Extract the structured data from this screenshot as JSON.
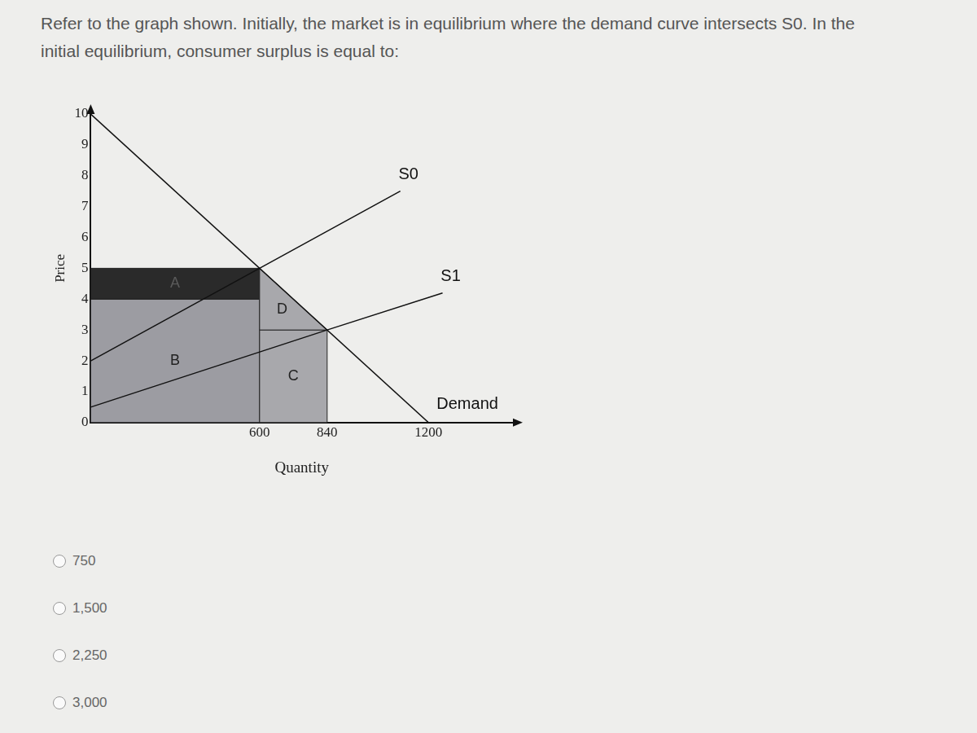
{
  "question": "Refer to the graph shown. Initially, the market is in equilibrium where the demand curve intersects S0. In the initial equilibrium, consumer surplus is equal to:",
  "options": [
    "750",
    "1,500",
    "2,250",
    "3,000"
  ],
  "chart_data": {
    "type": "line",
    "x_label": "Quantity",
    "y_label": "Price",
    "xlim": [
      0,
      1500
    ],
    "xticks": [
      600,
      840,
      1200
    ],
    "ylim": [
      0,
      10
    ],
    "yticks": [
      0,
      1,
      2,
      3,
      4,
      5,
      6,
      7,
      8,
      9,
      10
    ],
    "grid": false,
    "series": [
      {
        "name": "S0",
        "color": "#111111",
        "x": [
          0,
          600,
          1100
        ],
        "values": [
          2,
          5,
          7.5
        ]
      },
      {
        "name": "S1",
        "color": "#111111",
        "x": [
          0,
          840,
          1250
        ],
        "values": [
          0.5,
          3,
          4.2
        ]
      },
      {
        "name": "Demand",
        "color": "#111111",
        "x": [
          0,
          1200
        ],
        "values": [
          10,
          0
        ]
      }
    ],
    "regions": [
      {
        "label": "B",
        "color": "#9c9ca2",
        "points": [
          [
            0,
            0
          ],
          [
            600,
            0
          ],
          [
            600,
            4
          ],
          [
            0,
            4
          ]
        ]
      },
      {
        "label": "A",
        "color": "#2a2a2a",
        "points": [
          [
            0,
            4
          ],
          [
            600,
            4
          ],
          [
            600,
            5
          ],
          [
            0,
            5
          ]
        ]
      },
      {
        "label": "C",
        "color": "#a8a8ac",
        "points": [
          [
            600,
            0
          ],
          [
            840,
            0
          ],
          [
            840,
            3
          ],
          [
            600,
            3
          ]
        ]
      },
      {
        "label": "D",
        "color": "#a8a8ac",
        "points": [
          [
            600,
            5
          ],
          [
            840,
            3
          ],
          [
            600,
            3
          ]
        ]
      }
    ]
  }
}
